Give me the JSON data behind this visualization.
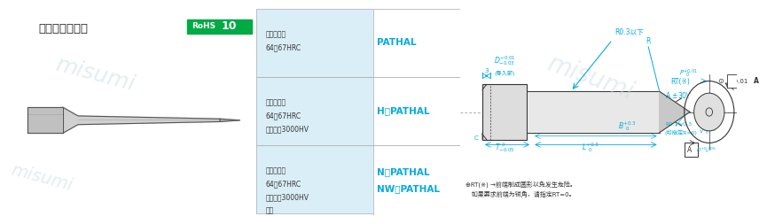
{
  "bg_color": "#ffffff",
  "left_panel_bg": "#ffffff",
  "mid_panel_bg": "#e8f4fd",
  "title_text": "－前端锐角型－",
  "rohs_text": "RoHS",
  "rohs_num": "10",
  "rohs_bg": "#00aa44",
  "rohs_text_color": "#ffffff",
  "watermark": "misumi",
  "watermark_color": "#ccddee",
  "materials": [
    {
      "mat": "粉末高速钢\n64～67HRC",
      "name": "PATHAL"
    },
    {
      "mat": "粉末高速钢\n64～67HRC\n表面硬度3000HV",
      "name": "H－PATHAL"
    },
    {
      "mat": "粉末高速钢\n64～67HRC\n表面硬度3000HV\n以上",
      "name": "N－PATHAL\nNW－PATHAL"
    }
  ],
  "cyan_color": "#00aadd",
  "dark_text": "#222222",
  "note_text": "⊕RT(※) →前端制成圆形以免发生危险。\n   如果要求前端为锐角，请指定RT=0。",
  "dim_color": "#00aadd",
  "line_color": "#333333"
}
